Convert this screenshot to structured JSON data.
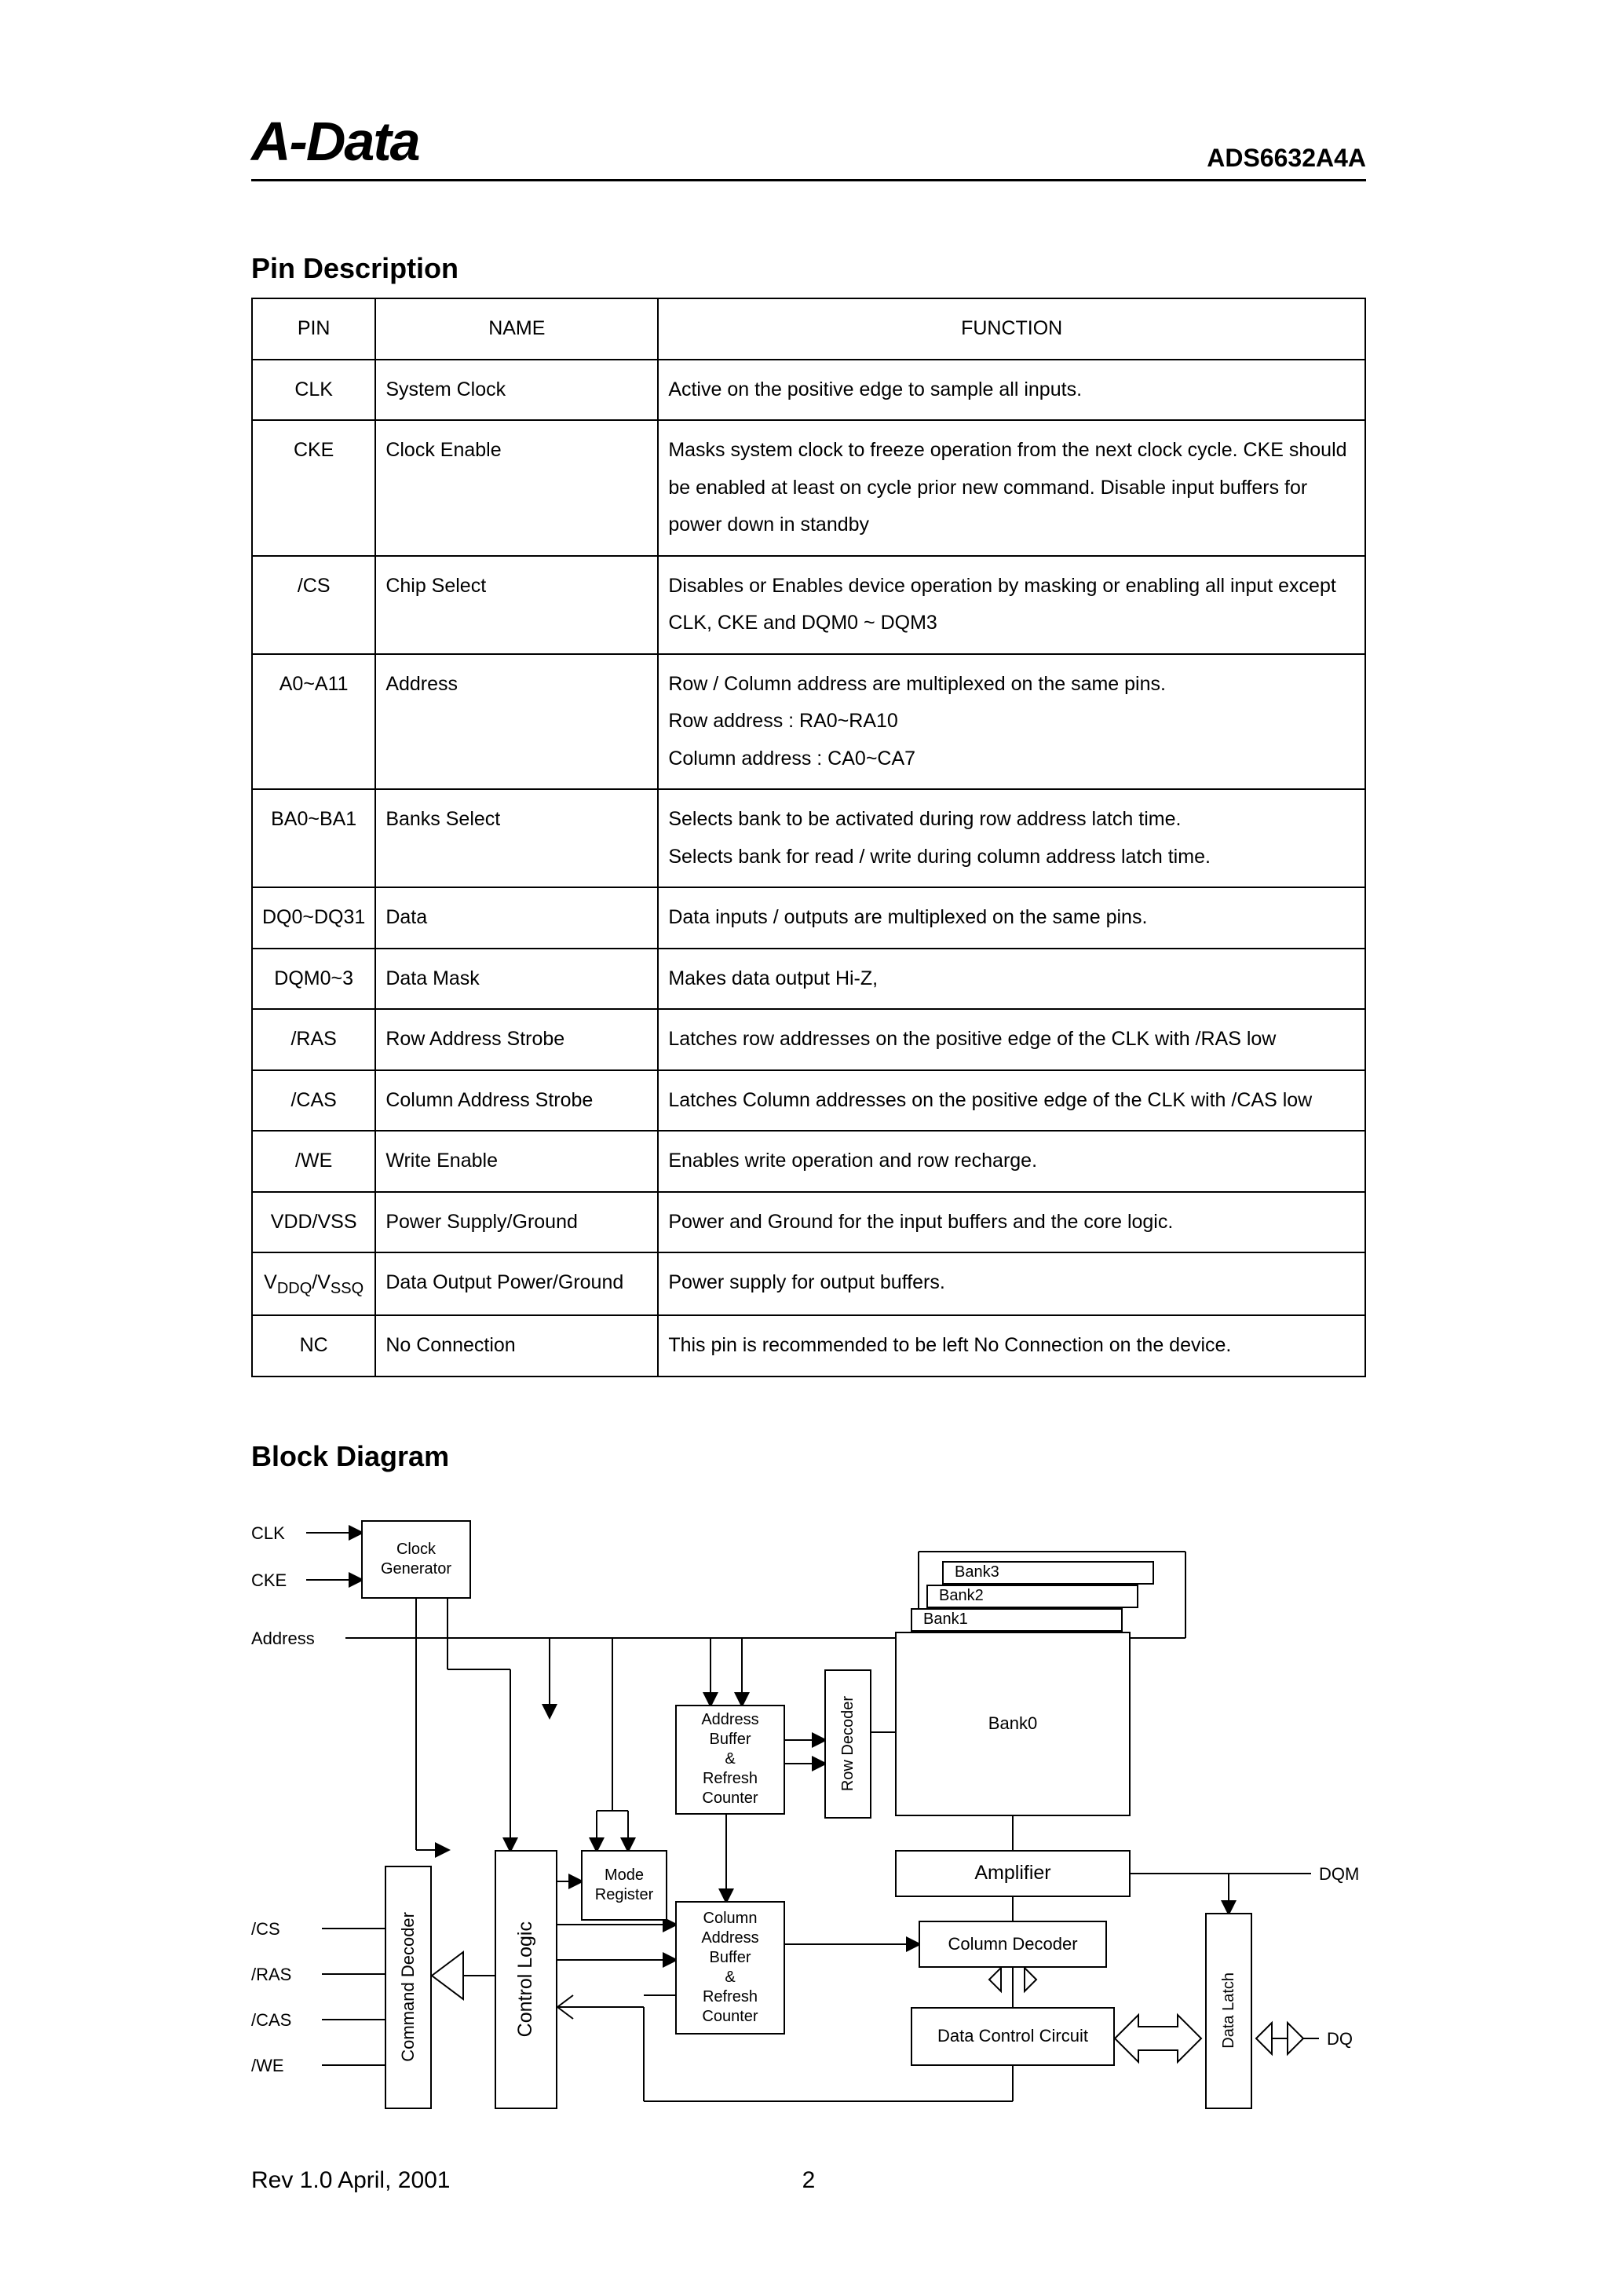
{
  "header": {
    "brand": "A-Data",
    "partno": "ADS6632A4A"
  },
  "pin_section_title": "Pin Description",
  "pin_table": {
    "headers": {
      "pin": "PIN",
      "name": "NAME",
      "func": "FUNCTION"
    },
    "rows": [
      {
        "pin": "CLK",
        "name": "System Clock",
        "func": "Active on the positive edge to sample all inputs."
      },
      {
        "pin": "CKE",
        "name": "Clock Enable",
        "func": "Masks system clock to freeze operation from the next clock cycle. CKE should be enabled at least on cycle prior new command. Disable input buffers for power down in standby"
      },
      {
        "pin": "/CS",
        "name": "Chip Select",
        "func": "Disables or Enables device operation by masking or enabling all input except CLK, CKE and DQM0 ~ DQM3"
      },
      {
        "pin": "A0~A11",
        "name": "Address",
        "func": "Row / Column address are multiplexed on the same pins.\nRow address : RA0~RA10\nColumn address : CA0~CA7"
      },
      {
        "pin": "BA0~BA1",
        "name": "Banks Select",
        "func": "Selects bank to be activated during row address latch time.\nSelects bank for read / write during column address latch time."
      },
      {
        "pin": "DQ0~DQ31",
        "name": "Data",
        "func": "Data inputs / outputs are multiplexed on the same pins."
      },
      {
        "pin": "DQM0~3",
        "name": "Data Mask",
        "func": "Makes data output Hi-Z,"
      },
      {
        "pin": "/RAS",
        "name": "Row Address Strobe",
        "func": "Latches row addresses on the positive edge of the CLK with /RAS low"
      },
      {
        "pin": "/CAS",
        "name": "Column Address Strobe",
        "func": "Latches Column addresses on the positive edge of the CLK with /CAS low"
      },
      {
        "pin": "/WE",
        "name": "Write Enable",
        "func": "Enables write operation and row recharge."
      },
      {
        "pin": "VDD/VSS",
        "name": "Power Supply/Ground",
        "func": "Power and Ground for the input buffers and the core logic."
      },
      {
        "pin": "VDDQ/VSSQ",
        "name": "Data Output Power/Ground",
        "func": "Power supply for output buffers."
      },
      {
        "pin": "NC",
        "name": "No Connection",
        "func": "This pin is recommended to be left No Connection on the device."
      }
    ]
  },
  "block_section_title": "Block Diagram",
  "diagram": {
    "input_labels": {
      "clk": "CLK",
      "cke": "CKE",
      "address": "Address",
      "cs": "/CS",
      "ras": "/RAS",
      "cas": "/CAS",
      "we": "/WE",
      "dqm": "DQM",
      "dq": "DQ"
    },
    "boxes": {
      "clockgen": "Clock\nGenerator",
      "modereg": "Mode\nRegister",
      "cmddec": "Command Decoder",
      "ctrllogic": "Control Logic",
      "addrbuf": "Address\nBuffer\n&\nRefresh\nCounter",
      "rowdec": "Row Decoder",
      "bank0": "Bank0",
      "bank1": "Bank1",
      "bank2": "Bank2",
      "bank3": "Bank3",
      "amp": "Amplifier",
      "coldec": "Column Decoder",
      "coladdrbuf": "Column\nAddress\nBuffer\n&\nRefresh\nCounter",
      "datactrl": "Data Control Circuit",
      "datalatch": "Data Latch"
    }
  },
  "footer": {
    "rev": "Rev 1.0 April, 2001",
    "page": "2"
  }
}
